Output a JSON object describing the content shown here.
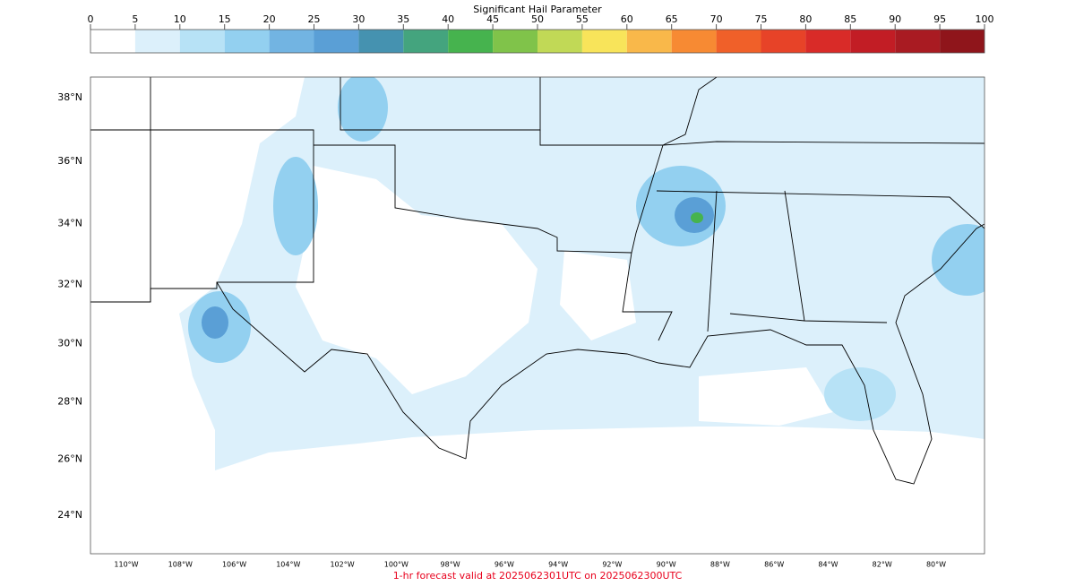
{
  "colorbar": {
    "title": "Significant Hail Parameter",
    "ticks": [
      0,
      5,
      10,
      15,
      20,
      25,
      30,
      35,
      40,
      45,
      50,
      55,
      60,
      65,
      70,
      75,
      80,
      85,
      90,
      95,
      100
    ],
    "colors": [
      "#ffffff",
      "#dcf0fb",
      "#b7e2f6",
      "#93d0f0",
      "#72b4e2",
      "#5a9fd6",
      "#4592b0",
      "#44a47e",
      "#46b34e",
      "#80c34a",
      "#c1d956",
      "#f8e45a",
      "#f9b84a",
      "#f78a33",
      "#f06029",
      "#e74328",
      "#d92b28",
      "#c21d25",
      "#a91b22",
      "#8f151b"
    ]
  },
  "map": {
    "lat_labels": [
      {
        "value": 38,
        "label": "38°N"
      },
      {
        "value": 36,
        "label": "36°N"
      },
      {
        "value": 34,
        "label": "34°N"
      },
      {
        "value": 32,
        "label": "32°N"
      },
      {
        "value": 30,
        "label": "30°N"
      },
      {
        "value": 28,
        "label": "28°N"
      },
      {
        "value": 26,
        "label": "26°N"
      },
      {
        "value": 24,
        "label": "24°N"
      }
    ],
    "lon_labels": [
      {
        "value": -110,
        "label": "110°W"
      },
      {
        "value": -108,
        "label": "108°W"
      },
      {
        "value": -106,
        "label": "106°W"
      },
      {
        "value": -104,
        "label": "104°W"
      },
      {
        "value": -102,
        "label": "102°W"
      },
      {
        "value": -100,
        "label": "100°W"
      },
      {
        "value": -98,
        "label": "98°W"
      },
      {
        "value": -96,
        "label": "96°W"
      },
      {
        "value": -94,
        "label": "94°W"
      },
      {
        "value": -92,
        "label": "92°W"
      },
      {
        "value": -90,
        "label": "90°W"
      },
      {
        "value": -88,
        "label": "88°W"
      },
      {
        "value": -86,
        "label": "86°W"
      },
      {
        "value": -84,
        "label": "84°W"
      },
      {
        "value": -82,
        "label": "82°W"
      },
      {
        "value": -80,
        "label": "80°W"
      }
    ]
  },
  "footer": "1-hr forecast valid at 2025062301UTC on 2025062300UTC"
}
